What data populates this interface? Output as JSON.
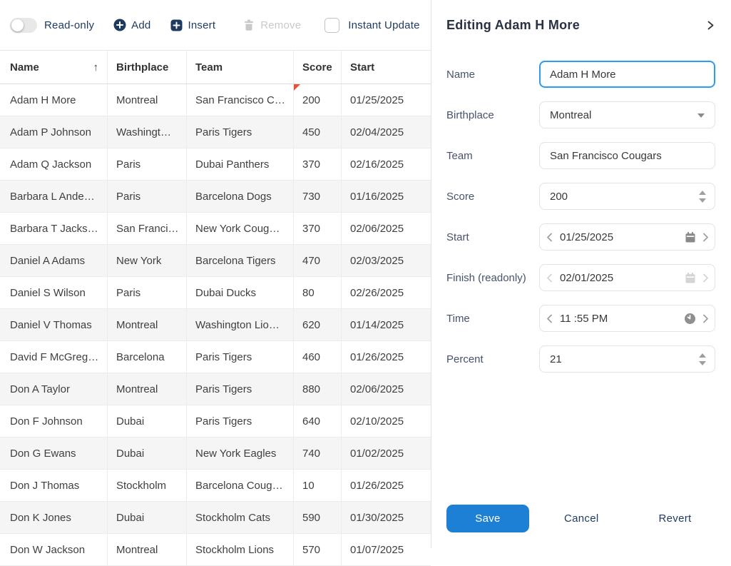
{
  "toolbar": {
    "readonly_label": "Read-only",
    "add_label": "Add",
    "insert_label": "Insert",
    "remove_label": "Remove",
    "instant_update_label": "Instant Update",
    "readonly_toggle_state": "off",
    "instant_update_checked": false,
    "remove_enabled": false
  },
  "grid": {
    "columns": [
      {
        "label": "Name",
        "sorted": "asc"
      },
      {
        "label": "Birthplace"
      },
      {
        "label": "Team"
      },
      {
        "label": "Score"
      },
      {
        "label": "Start"
      }
    ],
    "rows": [
      {
        "name": "Adam H More",
        "birthplace": "Montreal",
        "team": "San Francisco C…",
        "score": "200",
        "start": "01/25/2025",
        "modified_score": true
      },
      {
        "name": "Adam P Johnson",
        "birthplace": "Washingt…",
        "team": "Paris Tigers",
        "score": "450",
        "start": "02/04/2025"
      },
      {
        "name": "Adam Q Jackson",
        "birthplace": "Paris",
        "team": "Dubai Panthers",
        "score": "370",
        "start": "02/16/2025"
      },
      {
        "name": "Barbara L Ande…",
        "birthplace": "Paris",
        "team": "Barcelona Dogs",
        "score": "730",
        "start": "01/16/2025"
      },
      {
        "name": "Barbara T Jacks…",
        "birthplace": "San Franci…",
        "team": "New York Coug…",
        "score": "370",
        "start": "02/06/2025"
      },
      {
        "name": "Daniel A Adams",
        "birthplace": "New York",
        "team": "Barcelona Tigers",
        "score": "470",
        "start": "02/03/2025"
      },
      {
        "name": "Daniel S Wilson",
        "birthplace": "Paris",
        "team": "Dubai Ducks",
        "score": "80",
        "start": "02/26/2025"
      },
      {
        "name": "Daniel V Thomas",
        "birthplace": "Montreal",
        "team": "Washington Lio…",
        "score": "620",
        "start": "01/14/2025"
      },
      {
        "name": "David F McGreg…",
        "birthplace": "Barcelona",
        "team": "Paris Tigers",
        "score": "460",
        "start": "01/26/2025"
      },
      {
        "name": "Don A Taylor",
        "birthplace": "Montreal",
        "team": "Paris Tigers",
        "score": "880",
        "start": "02/06/2025"
      },
      {
        "name": "Don F Johnson",
        "birthplace": "Dubai",
        "team": "Paris Tigers",
        "score": "640",
        "start": "02/10/2025"
      },
      {
        "name": "Don G Ewans",
        "birthplace": "Dubai",
        "team": "New York Eagles",
        "score": "740",
        "start": "01/02/2025"
      },
      {
        "name": "Don J Thomas",
        "birthplace": "Stockholm",
        "team": "Barcelona Coug…",
        "score": "10",
        "start": "01/26/2025"
      },
      {
        "name": "Don K Jones",
        "birthplace": "Dubai",
        "team": "Stockholm Cats",
        "score": "590",
        "start": "01/30/2025"
      },
      {
        "name": "Don W Jackson",
        "birthplace": "Montreal",
        "team": "Stockholm Lions",
        "score": "570",
        "start": "01/07/2025"
      }
    ]
  },
  "panel": {
    "title": "Editing Adam H More",
    "fields": {
      "name": {
        "label": "Name",
        "value": "Adam H More"
      },
      "birthplace": {
        "label": "Birthplace",
        "value": "Montreal"
      },
      "team": {
        "label": "Team",
        "value": "San Francisco Cougars"
      },
      "score": {
        "label": "Score",
        "value": "200"
      },
      "start": {
        "label": "Start",
        "value": "01/25/2025"
      },
      "finish": {
        "label": "Finish (readonly)",
        "value": "02/01/2025",
        "readonly": true
      },
      "time": {
        "label": "Time",
        "value": "11 :55 PM"
      },
      "percent": {
        "label": "Percent",
        "value": "21"
      }
    },
    "buttons": {
      "save": "Save",
      "cancel": "Cancel",
      "revert": "Revert"
    }
  },
  "colors": {
    "accent_navy": "#1e3a5f",
    "save_blue": "#1e80d4",
    "focus_blue": "#2e9bef",
    "modified_marker_red": "#e8503a",
    "row_stripe": "#f5f5f5",
    "border": "#ececec",
    "disabled_gray": "#c9c9c9"
  }
}
